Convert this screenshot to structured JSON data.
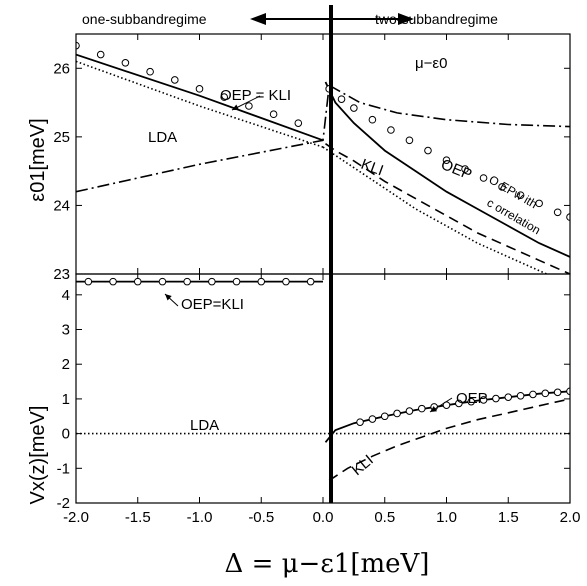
{
  "header": {
    "left_regime": "one-subbandregime",
    "right_regime": "two-subbandregime"
  },
  "chart_data": [
    {
      "panel": "top",
      "type": "line",
      "ylabel": "ε01[meV]",
      "ylim": [
        23,
        26.5
      ],
      "xlim": [
        -2.0,
        2.0
      ],
      "yticks": [
        "23",
        "24",
        "25",
        "26"
      ],
      "ytick_values": [
        23,
        24,
        25,
        26
      ],
      "annotations": [
        "OEP = KLI",
        "LDA",
        "μ−ε0",
        "KLI",
        "OEP",
        "O EPw ith",
        "c orrelation"
      ],
      "series": [
        {
          "name": "OEP = KLI",
          "style": "solid",
          "x": [
            -2.0,
            -1.0,
            0.0
          ],
          "y": [
            26.2,
            25.6,
            24.95
          ]
        },
        {
          "name": "LDA",
          "style": "dotted",
          "x": [
            -2.0,
            -1.0,
            0.0
          ],
          "y": [
            26.1,
            25.45,
            24.85
          ]
        },
        {
          "name": "μ−ε0",
          "style": "dashdot",
          "x": [
            -2.0,
            -1.0,
            0.0,
            0.05,
            0.3,
            0.6,
            1.0,
            1.5,
            2.0
          ],
          "y": [
            24.2,
            24.6,
            24.95,
            25.75,
            25.5,
            25.35,
            25.25,
            25.18,
            25.15
          ]
        },
        {
          "name": "OEP",
          "style": "solid",
          "x": [
            0.02,
            0.1,
            0.25,
            0.5,
            0.75,
            1.0,
            1.25,
            1.5,
            1.75,
            2.0
          ],
          "y": [
            25.8,
            25.5,
            25.2,
            24.8,
            24.5,
            24.2,
            23.95,
            23.7,
            23.45,
            23.25
          ]
        },
        {
          "name": "KLI",
          "style": "dashed",
          "x": [
            0.02,
            0.1,
            0.25,
            0.5,
            0.75,
            1.0,
            1.25,
            1.5,
            1.75,
            2.0
          ],
          "y": [
            24.9,
            24.8,
            24.65,
            24.35,
            24.1,
            23.85,
            23.6,
            23.4,
            23.2,
            23.0
          ]
        },
        {
          "name": "LDA",
          "style": "dotted",
          "x": [
            0.0,
            0.25,
            0.5,
            0.75,
            1.0,
            1.25,
            1.5,
            1.75,
            2.0
          ],
          "y": [
            24.85,
            24.55,
            24.25,
            23.95,
            23.7,
            23.45,
            23.25,
            23.05,
            22.85
          ]
        },
        {
          "name": "OEP with correlation",
          "style": "circles",
          "x": [
            -2.0,
            -1.8,
            -1.6,
            -1.4,
            -1.2,
            -1.0,
            -0.8,
            -0.6,
            -0.4,
            -0.2,
            0.05,
            0.15,
            0.25,
            0.4,
            0.55,
            0.7,
            0.85,
            1.0,
            1.15,
            1.3,
            1.45,
            1.6,
            1.75,
            1.9,
            2.0
          ],
          "y": [
            26.33,
            26.2,
            26.08,
            25.95,
            25.83,
            25.7,
            25.58,
            25.45,
            25.33,
            25.2,
            25.7,
            25.55,
            25.42,
            25.25,
            25.1,
            24.95,
            24.8,
            24.66,
            24.53,
            24.4,
            24.27,
            24.15,
            24.03,
            23.9,
            23.83
          ]
        }
      ]
    },
    {
      "panel": "bottom",
      "type": "line",
      "ylabel": "Vx(z)[meV]",
      "xlabel": "Δ = μ−ε1[meV]",
      "ylim": [
        -2,
        4.6
      ],
      "xlim": [
        -2.0,
        2.0
      ],
      "xticks": [
        "-2.0",
        "-1.5",
        "-1.0",
        "-0.5",
        "0.0",
        "0.5",
        "1.0",
        "1.5",
        "2.0"
      ],
      "xtick_values": [
        -2.0,
        -1.5,
        -1.0,
        -0.5,
        0.0,
        0.5,
        1.0,
        1.5,
        2.0
      ],
      "yticks": [
        "-2",
        "-1",
        "0",
        "1",
        "2",
        "3",
        "4"
      ],
      "ytick_values": [
        -2,
        -1,
        0,
        1,
        2,
        3,
        4
      ],
      "annotations": [
        "OEP=KLI",
        "LDA",
        "OEP",
        "KLI"
      ],
      "series": [
        {
          "name": "OEP=KLI",
          "style": "solid",
          "x": [
            -2.0,
            0.0
          ],
          "y": [
            4.38,
            4.38
          ]
        },
        {
          "name": "LDA",
          "style": "dotted",
          "x": [
            -2.0,
            2.0
          ],
          "y": [
            0,
            0
          ]
        },
        {
          "name": "OEP",
          "style": "solid",
          "x": [
            0.02,
            0.1,
            0.25,
            0.5,
            0.75,
            1.0,
            1.25,
            1.5,
            1.75,
            2.0
          ],
          "y": [
            -0.25,
            0.1,
            0.3,
            0.5,
            0.68,
            0.82,
            0.95,
            1.05,
            1.15,
            1.22
          ]
        },
        {
          "name": "KLI",
          "style": "dashed",
          "x": [
            0.05,
            0.2,
            0.4,
            0.6,
            0.8,
            1.0,
            1.25,
            1.5,
            1.75,
            2.0
          ],
          "y": [
            -1.35,
            -1.0,
            -0.65,
            -0.35,
            -0.1,
            0.15,
            0.4,
            0.6,
            0.8,
            1.0
          ]
        },
        {
          "name": "OEP=KLI points",
          "style": "circles",
          "x": [
            -1.9,
            -1.7,
            -1.5,
            -1.3,
            -1.1,
            -0.9,
            -0.7,
            -0.5,
            -0.3,
            -0.1
          ],
          "y": [
            4.38,
            4.38,
            4.38,
            4.38,
            4.38,
            4.38,
            4.38,
            4.38,
            4.38,
            4.38
          ]
        },
        {
          "name": "OEP points",
          "style": "circles",
          "x": [
            0.3,
            0.4,
            0.5,
            0.6,
            0.7,
            0.8,
            0.9,
            1.0,
            1.1,
            1.2,
            1.3,
            1.4,
            1.5,
            1.6,
            1.7,
            1.8,
            1.9,
            2.0
          ],
          "y": [
            0.33,
            0.42,
            0.5,
            0.58,
            0.65,
            0.72,
            0.77,
            0.82,
            0.87,
            0.92,
            0.97,
            1.01,
            1.05,
            1.09,
            1.13,
            1.16,
            1.19,
            1.22
          ]
        }
      ]
    }
  ]
}
